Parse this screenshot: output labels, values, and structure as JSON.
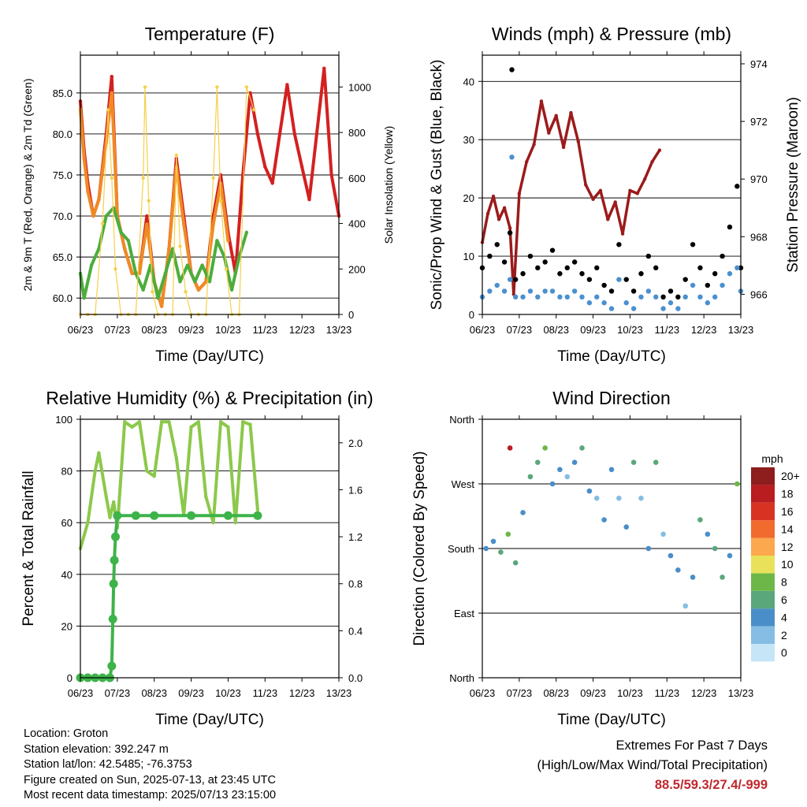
{
  "chart_data": [
    {
      "type": "line",
      "title": "Temperature (F)",
      "xlabel": "Time (Day/UTC)",
      "ylabel": "2m & 9m T (Red, Orange) & 2m Td (Green)",
      "y2label": "Solar Insolation (Yellow)",
      "x_ticks": [
        "06/23",
        "07/23",
        "08/23",
        "09/23",
        "10/23",
        "11/23",
        "12/23",
        "13/23"
      ],
      "ylim": [
        58.0,
        89.6
      ],
      "y_ticks": [
        "60.0",
        "65.0",
        "70.0",
        "75.0",
        "80.0",
        "85.0"
      ],
      "y2lim": [
        0,
        1140
      ],
      "y2_ticks": [
        "0",
        "200",
        "400",
        "600",
        "800",
        "1000"
      ],
      "grid": "horizontal",
      "series": [
        {
          "name": "2m T",
          "color": "#d42020",
          "x": [
            0,
            0.1,
            0.2,
            0.35,
            0.5,
            0.7,
            0.85,
            1.0,
            1.2,
            1.4,
            1.6,
            1.8,
            2.0,
            2.2,
            2.4,
            2.6,
            2.8,
            3.0,
            3.2,
            3.4,
            3.6,
            3.8,
            4.0,
            4.2,
            4.4,
            4.6,
            4.8,
            5.0,
            5.2,
            5.4,
            5.6,
            5.8,
            6.0,
            6.2,
            6.4,
            6.6,
            6.8,
            7.0
          ],
          "values": [
            84,
            78,
            74,
            70,
            72,
            80,
            87,
            70,
            66,
            63,
            63,
            70,
            62,
            59,
            66,
            77,
            70,
            63,
            61,
            62,
            70,
            75,
            68,
            63,
            75,
            85,
            80,
            76,
            74,
            80,
            86,
            80,
            76,
            72,
            80,
            88,
            75,
            70
          ]
        },
        {
          "name": "9m T",
          "color": "#f08a24",
          "x": [
            0,
            0.1,
            0.2,
            0.35,
            0.5,
            0.7,
            0.85,
            1.0,
            1.2,
            1.4,
            1.6,
            1.8,
            2.0,
            2.2,
            2.4,
            2.6,
            2.8,
            3.0,
            3.2,
            3.4,
            3.6,
            3.8,
            4.0
          ],
          "values": [
            83,
            77,
            73,
            70,
            72,
            79,
            85,
            70,
            66,
            63,
            63,
            69,
            62,
            59,
            66,
            76,
            69,
            63,
            61,
            62,
            69,
            74,
            67
          ]
        },
        {
          "name": "2m Td",
          "color": "#4cad3c",
          "x": [
            0,
            0.1,
            0.3,
            0.5,
            0.7,
            0.9,
            1.1,
            1.3,
            1.5,
            1.7,
            1.9,
            2.1,
            2.3,
            2.5,
            2.7,
            2.9,
            3.1,
            3.3,
            3.5,
            3.7,
            3.9,
            4.1,
            4.3,
            4.5
          ],
          "values": [
            63,
            60,
            64,
            66,
            70,
            71,
            68,
            67,
            63,
            61,
            64,
            60,
            63,
            66,
            62,
            64,
            62,
            64,
            62,
            67,
            65,
            61,
            65,
            68
          ]
        },
        {
          "name": "Solar Insolation",
          "color": "#f5d04a",
          "axis": "y2",
          "x": [
            0,
            0.2,
            0.4,
            0.6,
            0.75,
            0.85,
            0.95,
            1.1,
            1.3,
            1.5,
            1.7,
            1.75,
            1.85,
            1.95,
            2.1,
            2.3,
            2.5,
            2.6,
            2.7,
            2.85,
            3.0,
            3.2,
            3.4,
            3.6,
            3.7,
            3.8,
            3.95,
            4.1,
            4.3,
            4.5,
            4.7
          ],
          "values": [
            0,
            0,
            0,
            400,
            900,
            600,
            200,
            0,
            0,
            0,
            600,
            1000,
            500,
            100,
            0,
            0,
            0,
            700,
            300,
            100,
            0,
            0,
            0,
            600,
            1000,
            500,
            200,
            0,
            0,
            1000,
            900
          ]
        }
      ]
    },
    {
      "type": "scatter",
      "title": "Winds (mph) & Pressure (mb)",
      "xlabel": "Time (Day/UTC)",
      "ylabel": "Sonic/Prop Wind & Gust (Blue, Black)",
      "y2label": "Station Pressure (Maroon)",
      "x_ticks": [
        "06/23",
        "07/23",
        "08/23",
        "09/23",
        "10/23",
        "11/23",
        "12/23",
        "13/23"
      ],
      "ylim": [
        0,
        44.5
      ],
      "y_ticks": [
        "0",
        "10",
        "20",
        "30",
        "40"
      ],
      "y2lim": [
        965.3,
        974.3
      ],
      "y2_ticks": [
        "966",
        "968",
        "970",
        "972",
        "974"
      ],
      "grid": "horizontal",
      "series": [
        {
          "name": "Station Pressure",
          "color": "#9b1b1b",
          "axis": "y2",
          "x": [
            0,
            0.15,
            0.3,
            0.45,
            0.6,
            0.75,
            0.85,
            1.0,
            1.2,
            1.4,
            1.6,
            1.8,
            2.0,
            2.2,
            2.4,
            2.6,
            2.8,
            3.0,
            3.2,
            3.4,
            3.6,
            3.8,
            4.0,
            4.2,
            4.4,
            4.6,
            4.8
          ],
          "values": [
            967.8,
            968.8,
            969.4,
            968.6,
            969.0,
            968.3,
            966.0,
            969.5,
            970.6,
            971.2,
            972.7,
            971.6,
            972.2,
            971.1,
            972.3,
            971.3,
            969.8,
            969.3,
            969.6,
            968.6,
            969.2,
            968.1,
            969.6,
            969.5,
            970.0,
            970.6,
            971.0
          ]
        },
        {
          "name": "Gust",
          "color": "#000000",
          "x": [
            0,
            0.2,
            0.4,
            0.6,
            0.75,
            0.8,
            0.9,
            1.1,
            1.3,
            1.5,
            1.7,
            1.9,
            2.1,
            2.3,
            2.5,
            2.7,
            2.9,
            3.1,
            3.3,
            3.5,
            3.7,
            3.9,
            4.1,
            4.3,
            4.5,
            4.7,
            4.9,
            5.1,
            5.3,
            5.5,
            5.7,
            5.9,
            6.1,
            6.3,
            6.5,
            6.7,
            6.9,
            7.0
          ],
          "values": [
            8,
            10,
            12,
            9,
            14,
            42,
            6,
            7,
            10,
            8,
            9,
            11,
            7,
            8,
            9,
            7,
            6,
            8,
            5,
            4,
            12,
            6,
            4,
            7,
            10,
            8,
            3,
            4,
            3,
            6,
            12,
            8,
            5,
            7,
            10,
            15,
            22,
            8
          ]
        },
        {
          "name": "Wind",
          "color": "#4a90d0",
          "x": [
            0,
            0.2,
            0.4,
            0.6,
            0.75,
            0.8,
            0.9,
            1.1,
            1.3,
            1.5,
            1.7,
            1.9,
            2.1,
            2.3,
            2.5,
            2.7,
            2.9,
            3.1,
            3.3,
            3.5,
            3.7,
            3.9,
            4.1,
            4.3,
            4.5,
            4.7,
            4.9,
            5.1,
            5.3,
            5.5,
            5.7,
            5.9,
            6.1,
            6.3,
            6.5,
            6.7,
            6.9,
            7.0
          ],
          "values": [
            3,
            4,
            5,
            4,
            6,
            27,
            3,
            3,
            4,
            3,
            4,
            4,
            3,
            3,
            4,
            3,
            2,
            3,
            2,
            1,
            6,
            2,
            1,
            3,
            4,
            3,
            1,
            2,
            1,
            3,
            5,
            3,
            2,
            3,
            5,
            7,
            8,
            4
          ]
        }
      ]
    },
    {
      "type": "line",
      "title": "Relative Humidity (%) & Precipitation (in)",
      "xlabel": "Time (Day/UTC)",
      "ylabel": "Percent & Total Rainfall",
      "x_ticks": [
        "06/23",
        "07/23",
        "08/23",
        "09/23",
        "10/23",
        "11/23",
        "12/23",
        "13/23"
      ],
      "ylim": [
        0,
        100
      ],
      "y_ticks": [
        "0",
        "20",
        "40",
        "60",
        "80",
        "100"
      ],
      "y2lim": [
        0,
        2.2
      ],
      "y2_ticks": [
        "0.0",
        "0.4",
        "0.8",
        "1.2",
        "1.6",
        "2.0"
      ],
      "grid": "horizontal",
      "series": [
        {
          "name": "Relative Humidity",
          "color": "#8cc84b",
          "x": [
            0,
            0.2,
            0.4,
            0.5,
            0.7,
            0.8,
            0.9,
            1.0,
            1.2,
            1.4,
            1.6,
            1.8,
            2.0,
            2.2,
            2.4,
            2.6,
            2.8,
            3.0,
            3.2,
            3.4,
            3.6,
            3.8,
            4.0,
            4.2,
            4.4,
            4.6,
            4.8
          ],
          "values": [
            50,
            60,
            80,
            87,
            70,
            62,
            68,
            58,
            99,
            97,
            99,
            80,
            78,
            99,
            99,
            85,
            63,
            97,
            99,
            70,
            60,
            99,
            97,
            60,
            99,
            98,
            65
          ]
        },
        {
          "name": "Precipitation",
          "color": "#3db34a",
          "axis": "y2",
          "x": [
            0,
            0.2,
            0.4,
            0.6,
            0.8,
            0.85,
            0.88,
            0.9,
            0.92,
            0.95,
            1.0,
            1.5,
            2.0,
            3.0,
            4.0,
            4.8
          ],
          "values": [
            0,
            0,
            0,
            0,
            0,
            0.1,
            0.5,
            0.8,
            1.0,
            1.2,
            1.38,
            1.38,
            1.38,
            1.38,
            1.38,
            1.38
          ]
        }
      ]
    },
    {
      "type": "scatter",
      "title": "Wind Direction",
      "xlabel": "Time (Day/UTC)",
      "ylabel": "Direction (Colored By Speed)",
      "x_ticks": [
        "06/23",
        "07/23",
        "08/23",
        "09/23",
        "10/23",
        "11/23",
        "12/23",
        "13/23"
      ],
      "y_ticks": [
        "North",
        "East",
        "South",
        "West",
        "North"
      ],
      "ylim": [
        0,
        360
      ],
      "grid": "horizontal",
      "colorbar": {
        "unit": "mph",
        "labels": [
          "0",
          "2",
          "4",
          "6",
          "8",
          "10",
          "12",
          "14",
          "16",
          "18",
          "20+"
        ],
        "colors": [
          "#c6e6f7",
          "#86bde4",
          "#4a8ec9",
          "#5aa77c",
          "#6db749",
          "#e8e159",
          "#fba84e",
          "#f16a2e",
          "#d83223",
          "#b91d1f",
          "#8e1d1d"
        ]
      },
      "series": [
        {
          "name": "Direction",
          "x": [
            0.1,
            0.3,
            0.5,
            0.7,
            0.75,
            0.9,
            1.1,
            1.3,
            1.5,
            1.7,
            1.9,
            2.1,
            2.3,
            2.5,
            2.7,
            2.9,
            3.1,
            3.3,
            3.5,
            3.7,
            3.9,
            4.1,
            4.3,
            4.5,
            4.7,
            4.9,
            5.1,
            5.3,
            5.5,
            5.7,
            5.9,
            6.1,
            6.3,
            6.5,
            6.7,
            6.9
          ],
          "values": [
            180,
            190,
            175,
            200,
            320,
            160,
            230,
            280,
            300,
            320,
            270,
            290,
            280,
            300,
            320,
            260,
            250,
            220,
            290,
            250,
            210,
            300,
            250,
            180,
            300,
            200,
            170,
            150,
            100,
            140,
            220,
            200,
            180,
            140,
            170,
            270
          ],
          "speeds": [
            3,
            4,
            5,
            7,
            18,
            5,
            3,
            5,
            6,
            7,
            4,
            3,
            2,
            4,
            5,
            3,
            2,
            3,
            4,
            2,
            3,
            5,
            2,
            3,
            6,
            2,
            3,
            4,
            2,
            3,
            5,
            4,
            5,
            6,
            4,
            8
          ]
        }
      ]
    }
  ],
  "info": {
    "location": "Location: Groton",
    "elevation": "Station elevation: 392.247 m",
    "latlon": "Station lat/lon: 42.5485; -76.3753",
    "created": "Figure created on Sun, 2025-07-13, at 23:45 UTC",
    "recent": "Most recent data timestamp: 2025/07/13 23:15:00"
  },
  "extremes": {
    "title": "Extremes For Past 7 Days",
    "subtitle": "(High/Low/Max Wind/Total Precipitation)",
    "values": "88.5/59.3/27.4/-999"
  }
}
